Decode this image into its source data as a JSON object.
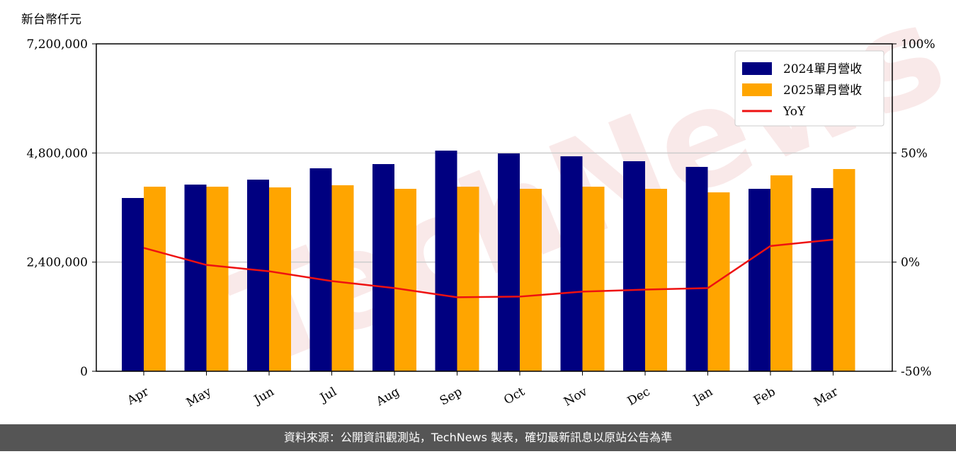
{
  "chart_data": {
    "type": "bar",
    "y_label": "新台幣仟元",
    "source": "資料來源：公開資訊觀測站，TechNews 製表，確切最新訊息以原站公告為準",
    "watermark": "TechNews",
    "categories": [
      "Apr",
      "May",
      "Jun",
      "Jul",
      "Aug",
      "Sep",
      "Oct",
      "Nov",
      "Dec",
      "Jan",
      "Feb",
      "Mar"
    ],
    "series": [
      {
        "name": "2024單月營收",
        "color": "#000080",
        "values": [
          3810000,
          4105000,
          4214000,
          4463000,
          4556000,
          4852000,
          4790000,
          4727000,
          4619000,
          4494000,
          4012000,
          4028000
        ]
      },
      {
        "name": "2025單月營收",
        "color": "#ffa500",
        "values": [
          4059000,
          4059000,
          4043000,
          4090000,
          4012000,
          4059000,
          4012000,
          4059000,
          4012000,
          3934000,
          4308000,
          4447000
        ]
      },
      {
        "name": "YoY",
        "color": "#ee1111",
        "type": "line",
        "axis": "y2",
        "values": [
          6.5,
          -1.3,
          -4.2,
          -8.7,
          -11.9,
          -16.1,
          -15.8,
          -13.5,
          -12.6,
          -11.9,
          7.4,
          10.3
        ]
      }
    ],
    "ylim": [
      0,
      7200000
    ],
    "yticks": [
      0,
      {
        "value": 2400000,
        "label": "2,400,000"
      },
      {
        "value": 4800000,
        "label": "4,800,000"
      },
      {
        "value": 7200000,
        "label": "7,200,000"
      }
    ],
    "y2lim": [
      -50,
      100
    ],
    "y2ticks": [
      {
        "value": -50,
        "label": "-50%"
      },
      {
        "value": 0,
        "label": "0%"
      },
      {
        "value": 50,
        "label": "50%"
      },
      {
        "value": 100,
        "label": "100%"
      }
    ],
    "grid": true,
    "legend": "upper right"
  }
}
